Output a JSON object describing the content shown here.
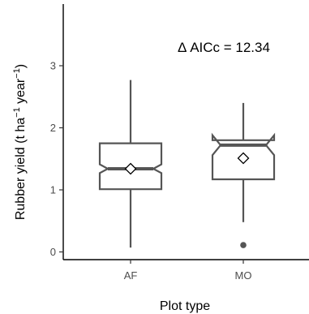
{
  "chart_data": {
    "type": "boxplot",
    "notched": true,
    "xlabel": "Plot type",
    "ylabel_main": "Rubber yield (t ha",
    "ylabel_sup1": "−1",
    "ylabel_mid": " year",
    "ylabel_sup2": "−1",
    "ylabel_end": ")",
    "ylim": [
      0,
      3.8
    ],
    "yticks": [
      0,
      1,
      2,
      3
    ],
    "ytick_labels": [
      "0",
      "1",
      "2",
      "3"
    ],
    "categories": [
      "AF",
      "MO"
    ],
    "boxes": [
      {
        "category": "AF",
        "whisker_low": 0.07,
        "q1": 1.01,
        "median": 1.34,
        "q3": 1.75,
        "whisker_high": 2.77,
        "notch_low": 1.27,
        "notch_high": 1.41,
        "mean": 1.34,
        "outliers": []
      },
      {
        "category": "MO",
        "whisker_low": 0.48,
        "q1": 1.17,
        "median": 1.72,
        "q3": 1.8,
        "whisker_high": 2.4,
        "notch_low": 1.56,
        "notch_high": 1.88,
        "mean": 1.51,
        "outliers": [
          0.11
        ]
      }
    ],
    "annotation": "Δ AICc = 12.34",
    "grid": false,
    "legend": "none",
    "colors": {
      "box": "#555555",
      "axis": "#000000",
      "tick_text": "#4d4d4d",
      "mean_fill": "#ffffff"
    }
  }
}
